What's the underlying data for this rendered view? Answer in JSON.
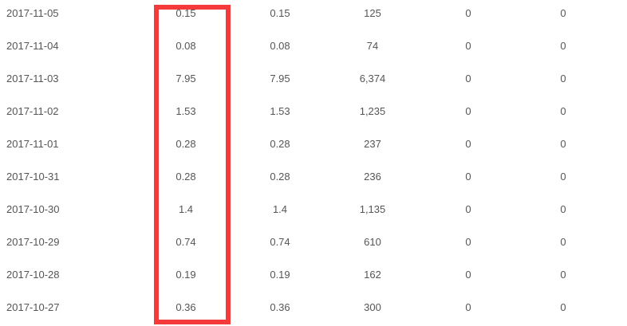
{
  "highlight_color": "#f43a3a",
  "rows": [
    [
      "2017-11-05",
      "0.15",
      "0.15",
      "125",
      "0",
      "0"
    ],
    [
      "2017-11-04",
      "0.08",
      "0.08",
      "74",
      "0",
      "0"
    ],
    [
      "2017-11-03",
      "7.95",
      "7.95",
      "6,374",
      "0",
      "0"
    ],
    [
      "2017-11-02",
      "1.53",
      "1.53",
      "1,235",
      "0",
      "0"
    ],
    [
      "2017-11-01",
      "0.28",
      "0.28",
      "237",
      "0",
      "0"
    ],
    [
      "2017-10-31",
      "0.28",
      "0.28",
      "236",
      "0",
      "0"
    ],
    [
      "2017-10-30",
      "1.4",
      "1.4",
      "1,135",
      "0",
      "0"
    ],
    [
      "2017-10-29",
      "0.74",
      "0.74",
      "610",
      "0",
      "0"
    ],
    [
      "2017-10-28",
      "0.19",
      "0.19",
      "162",
      "0",
      "0"
    ],
    [
      "2017-10-27",
      "0.36",
      "0.36",
      "300",
      "0",
      "0"
    ]
  ]
}
